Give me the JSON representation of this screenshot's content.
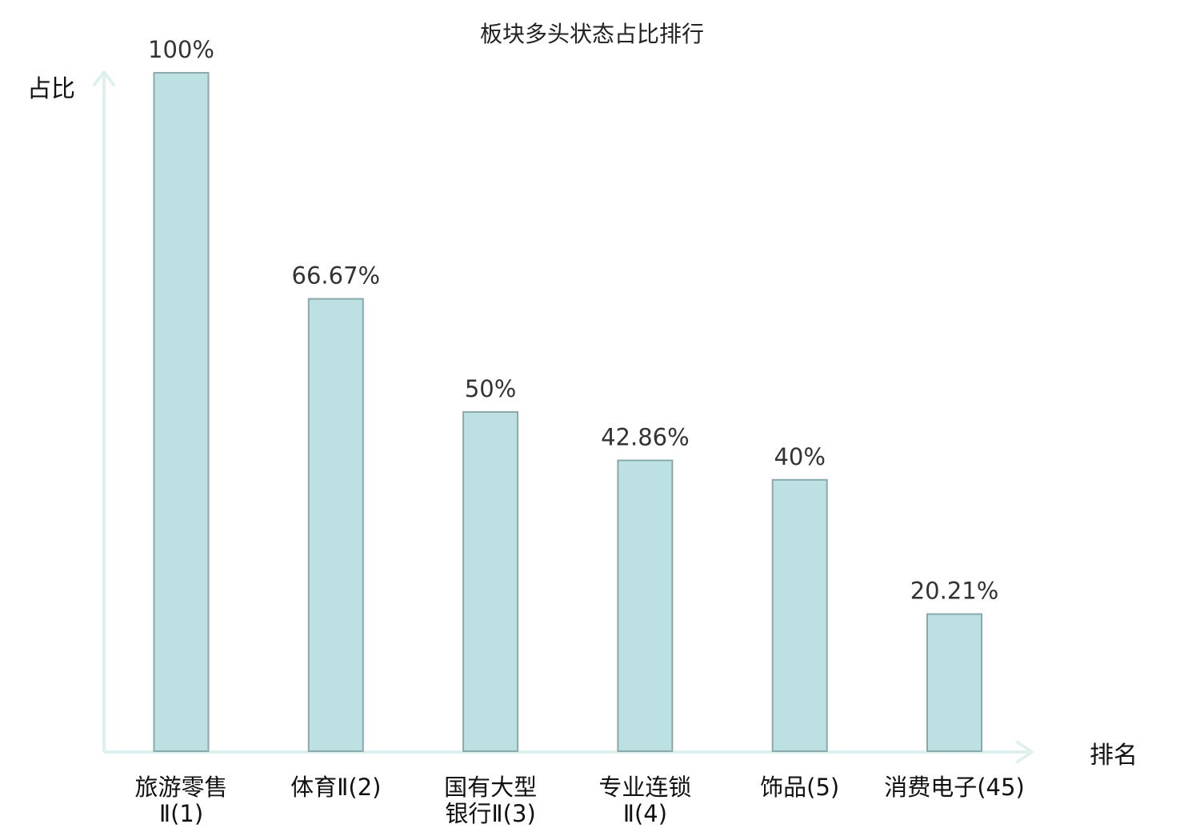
{
  "chart_data": {
    "type": "bar",
    "title": "板块多头状态占比排行",
    "ylabel": "占比",
    "xlabel": "排名",
    "ylim": [
      0,
      100
    ],
    "grid": false,
    "categories": [
      {
        "lines": [
          "旅游零售",
          "Ⅱ(1)"
        ],
        "highlight": false
      },
      {
        "lines": [
          "体育Ⅱ(2)"
        ],
        "highlight": false
      },
      {
        "lines": [
          "国有大型",
          "银行Ⅱ(3)"
        ],
        "highlight": false
      },
      {
        "lines": [
          "专业连锁",
          "Ⅱ(4)"
        ],
        "highlight": false
      },
      {
        "lines": [
          "饰品(5)"
        ],
        "highlight": false
      },
      {
        "lines": [
          "消费电子(45)"
        ],
        "highlight": true
      }
    ],
    "values": [
      100,
      66.67,
      50,
      42.86,
      40,
      20.21
    ],
    "value_labels": [
      "100%",
      "66.67%",
      "50%",
      "42.86%",
      "40%",
      "20.21%"
    ]
  },
  "colors": {
    "bar_fill": "#bde0e2",
    "bar_stroke": "#8aa9ab",
    "axis": "#dff1ef",
    "highlight_text": "#e0201b",
    "text": "#111111"
  }
}
